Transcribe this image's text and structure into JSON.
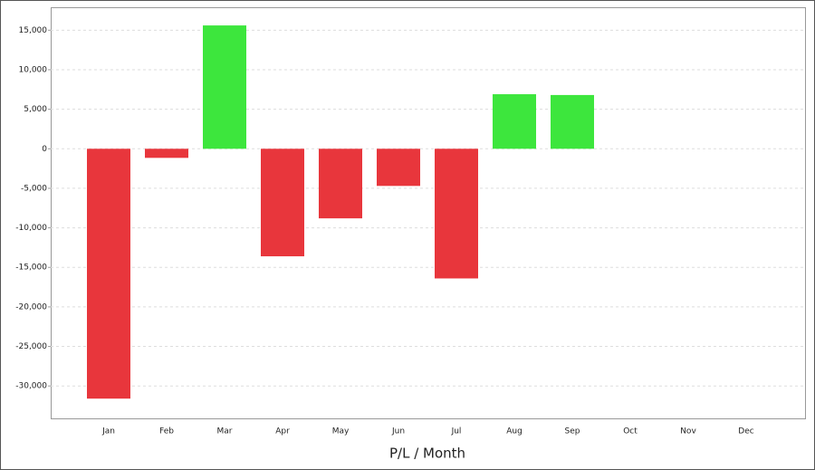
{
  "chart_data": {
    "type": "bar",
    "x_label": "P/L / Month",
    "categories": [
      "Jan",
      "Feb",
      "Mar",
      "Apr",
      "May",
      "Jun",
      "Jul",
      "Aug",
      "Sep",
      "Oct",
      "Nov",
      "Dec"
    ],
    "values": [
      -31600,
      -1150,
      15600,
      -13600,
      -8800,
      -4700,
      -16400,
      6900,
      6800,
      null,
      null,
      null
    ],
    "positive_color": "#3de63d",
    "negative_color": "#e8363c",
    "ylim": [
      -34100,
      17900
    ],
    "yticks": [
      {
        "value": -30000,
        "label": "-30,000"
      },
      {
        "value": -25000,
        "label": "-25,000"
      },
      {
        "value": -20000,
        "label": "-20,000"
      },
      {
        "value": -15000,
        "label": "-15,000"
      },
      {
        "value": -10000,
        "label": "-10,000"
      },
      {
        "value": -5000,
        "label": "-5,000"
      },
      0,
      {
        "value": 5000,
        "label": "5,000"
      },
      {
        "value": 10000,
        "label": "10,000"
      },
      {
        "value": 15000,
        "label": "15,000"
      }
    ],
    "grid": true
  }
}
